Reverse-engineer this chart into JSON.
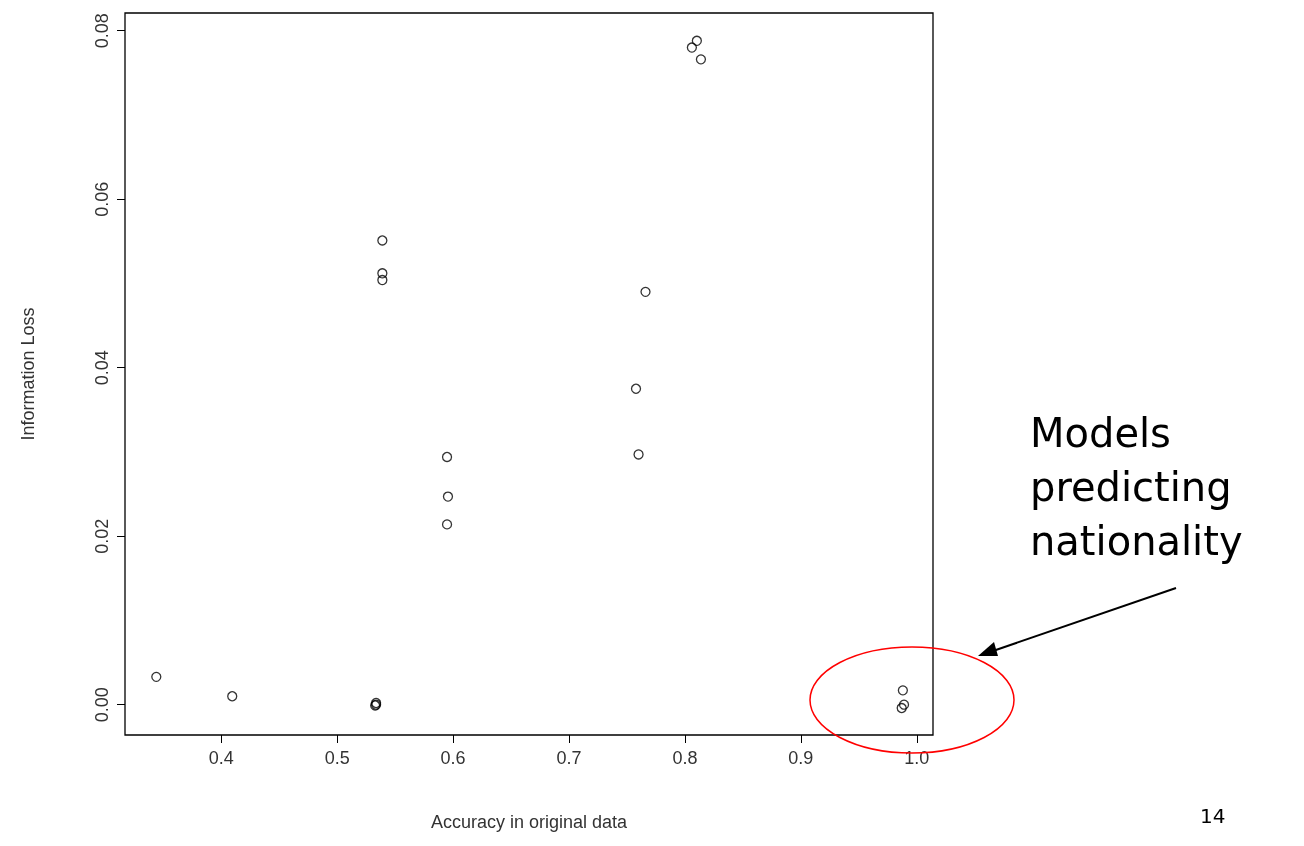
{
  "chart_data": {
    "type": "scatter",
    "xlabel": "Accuracy in original data",
    "ylabel": "Information Loss",
    "x": [
      0.344,
      0.4095,
      0.5336,
      0.5336,
      0.5328,
      0.539,
      0.539,
      0.539,
      0.5948,
      0.5956,
      0.5948,
      0.7578,
      0.76,
      0.766,
      0.806,
      0.8103,
      0.8138,
      0.988,
      0.989,
      0.987
    ],
    "series": [
      {
        "color": "#000000",
        "values": [
          0.0033,
          0.001,
          0.0002,
          0.0,
          -0.0001,
          0.0551,
          0.0512,
          0.0504,
          0.0294,
          0.0247,
          0.0214,
          0.0375,
          0.0297,
          0.049,
          0.078,
          0.0788,
          0.0766,
          0.0017,
          0.0,
          -0.0004
        ]
      }
    ],
    "xlim": [
      0.317,
      1.014
    ],
    "ylim": [
      -0.0036,
      0.0821
    ],
    "xticks": [
      0.4,
      0.5,
      0.6,
      0.7,
      0.8,
      0.9,
      {
        "value": 1.0,
        "label": "1.0"
      }
    ],
    "yticks": [
      {
        "value": 0,
        "label": "0.00"
      },
      {
        "value": 0.02,
        "label": "0.02"
      },
      {
        "value": 0.04,
        "label": "0.04"
      },
      {
        "value": 0.06,
        "label": "0.06"
      },
      {
        "value": 0.08,
        "label": "0.08"
      }
    ],
    "marker": "circle",
    "grid": false,
    "annotations": [
      "Models predicting nationality",
      "14"
    ]
  }
}
